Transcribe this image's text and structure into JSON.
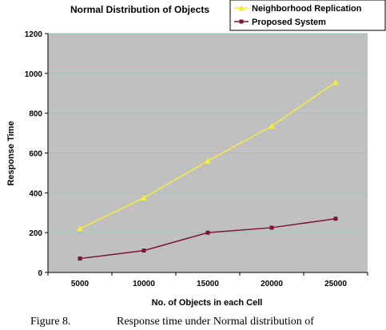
{
  "chart_data": {
    "type": "line",
    "title": "Normal Distribution of Objects",
    "xlabel": "No. of Objects in each Cell",
    "ylabel": "Response Time",
    "categories": [
      "5000",
      "10000",
      "15000",
      "20000",
      "25000"
    ],
    "ylim": [
      0,
      1200
    ],
    "yticks": [
      0,
      200,
      400,
      600,
      800,
      1000,
      1200
    ],
    "grid": true,
    "legend": "top-right",
    "series": [
      {
        "name": "Neighborhood Replication",
        "values": [
          220,
          375,
          560,
          735,
          955
        ],
        "color": "#f5ec3c",
        "marker": "triangle"
      },
      {
        "name": "Proposed System",
        "values": [
          70,
          110,
          200,
          225,
          270
        ],
        "color": "#7a1535",
        "marker": "square"
      }
    ]
  },
  "caption": {
    "label": "Figure 8.",
    "text": "Response time under Normal distribution of"
  }
}
